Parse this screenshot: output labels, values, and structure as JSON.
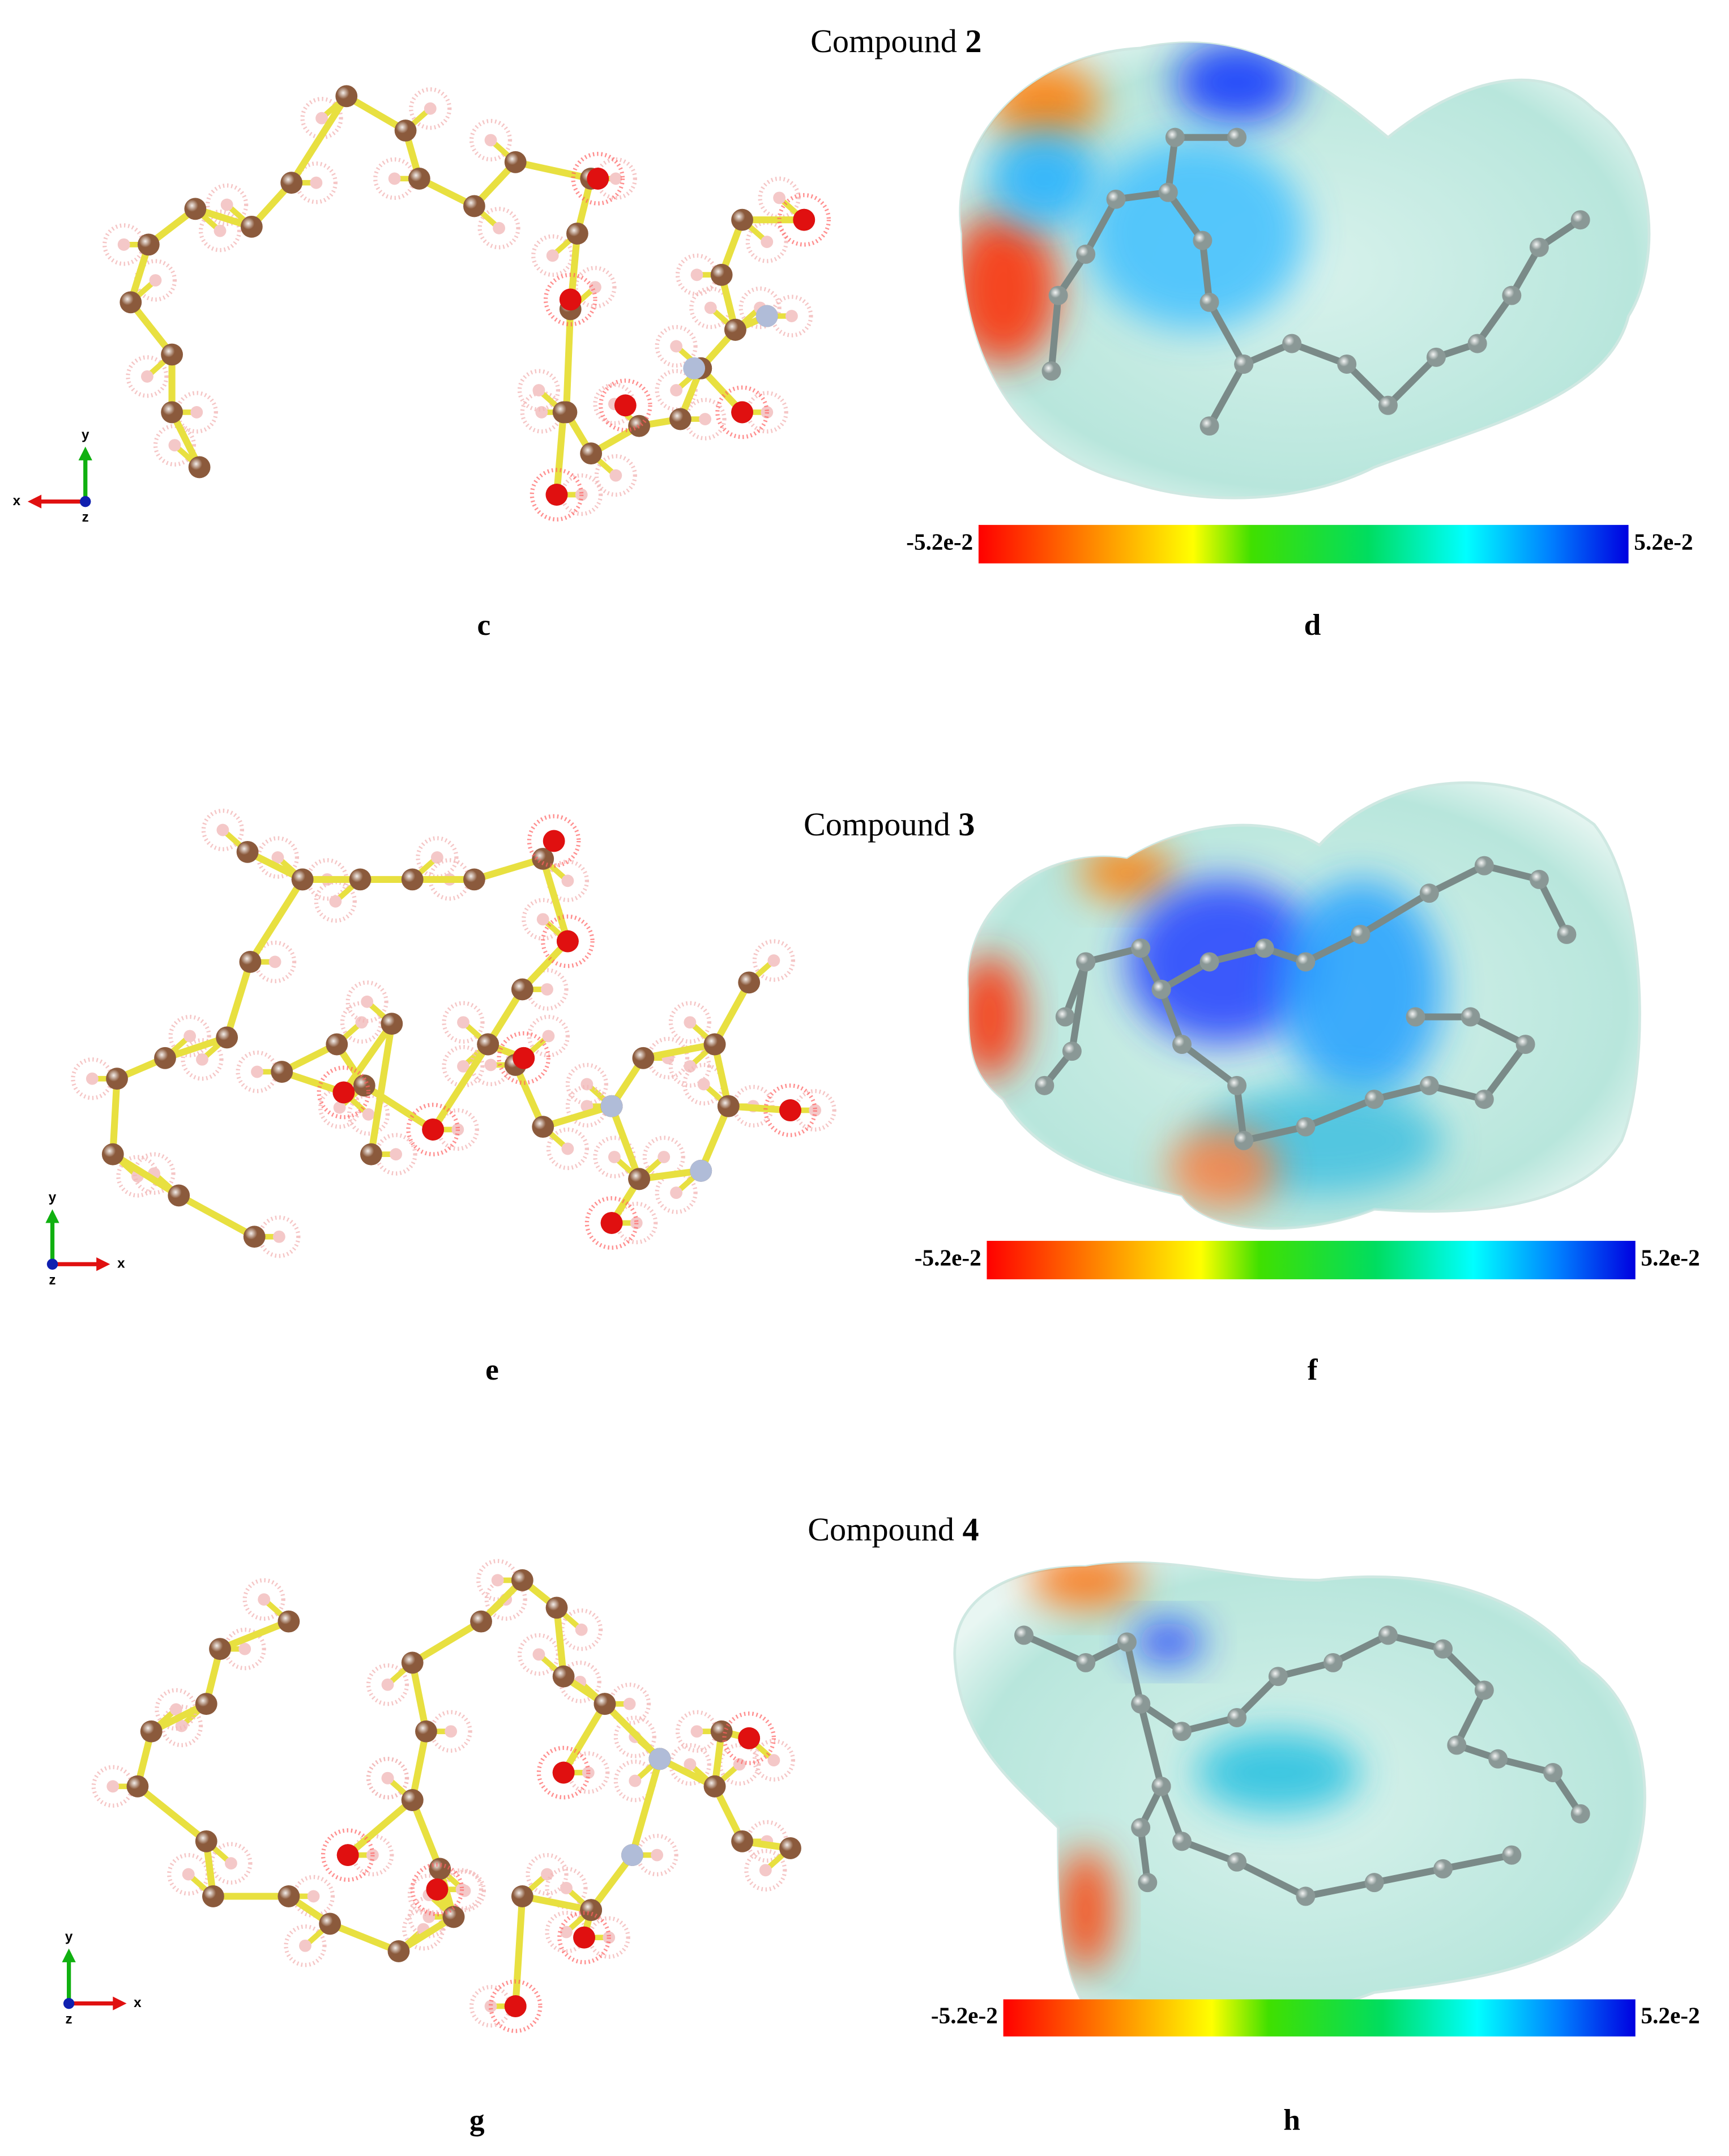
{
  "figure": {
    "rows": [
      {
        "title": {
          "prefix": "Compound ",
          "number": "2"
        },
        "left": {
          "label": "c",
          "axes": [
            "x",
            "y",
            "z"
          ]
        },
        "right": {
          "label": "d",
          "scale": {
            "min": "-5.2e-2",
            "max": "5.2e-2"
          }
        }
      },
      {
        "title": {
          "prefix": "Compound ",
          "number": "3"
        },
        "left": {
          "label": "e",
          "axes": [
            "x",
            "y",
            "z"
          ]
        },
        "right": {
          "label": "f",
          "scale": {
            "min": "-5.2e-2",
            "max": "5.2e-2"
          }
        }
      },
      {
        "title": {
          "prefix": "Compound ",
          "number": "4"
        },
        "left": {
          "label": "g",
          "axes": [
            "x",
            "y",
            "z"
          ]
        },
        "right": {
          "label": "h",
          "scale": {
            "min": "-5.2e-2",
            "max": "5.2e-2"
          }
        }
      }
    ]
  }
}
